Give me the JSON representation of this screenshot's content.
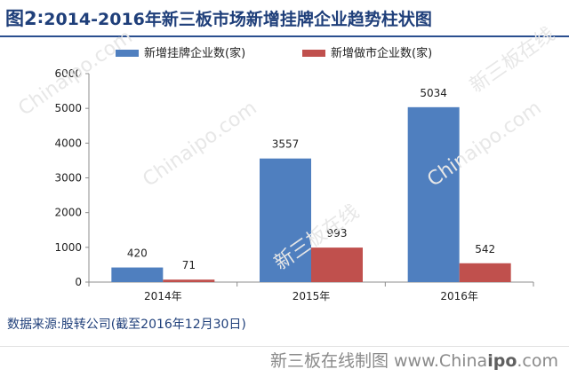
{
  "header": {
    "fig_label": "图2",
    "fig_colon": ":",
    "title_text": " 2014-2016年新三板市场新增挂牌企业趋势柱状图"
  },
  "source_note": "数据来源:股转公司(截至2016年12月30日)",
  "watermark": {
    "prefix": "新三板在线制图 www.China",
    "bold_part": "ipo",
    "suffix": ".com"
  },
  "background_watermarks": [
    "Chinaipo.com",
    "新三板在线"
  ],
  "colors": {
    "series1": "#4f7fbf",
    "series2": "#c0504d",
    "title": "#1f3f7a",
    "grid": "#d9d9d9"
  },
  "chart_data": {
    "type": "bar",
    "categories": [
      "2014年",
      "2015年",
      "2016年"
    ],
    "series": [
      {
        "name": "新增挂牌企业数(家)",
        "values": [
          420,
          3557,
          5034
        ]
      },
      {
        "name": "新增做市企业数(家)",
        "values": [
          71,
          993,
          542
        ]
      }
    ],
    "ylim": [
      0,
      6000
    ],
    "yticks": [
      0,
      1000,
      2000,
      3000,
      4000,
      5000,
      6000
    ],
    "legend": "top-center",
    "grid": false
  }
}
